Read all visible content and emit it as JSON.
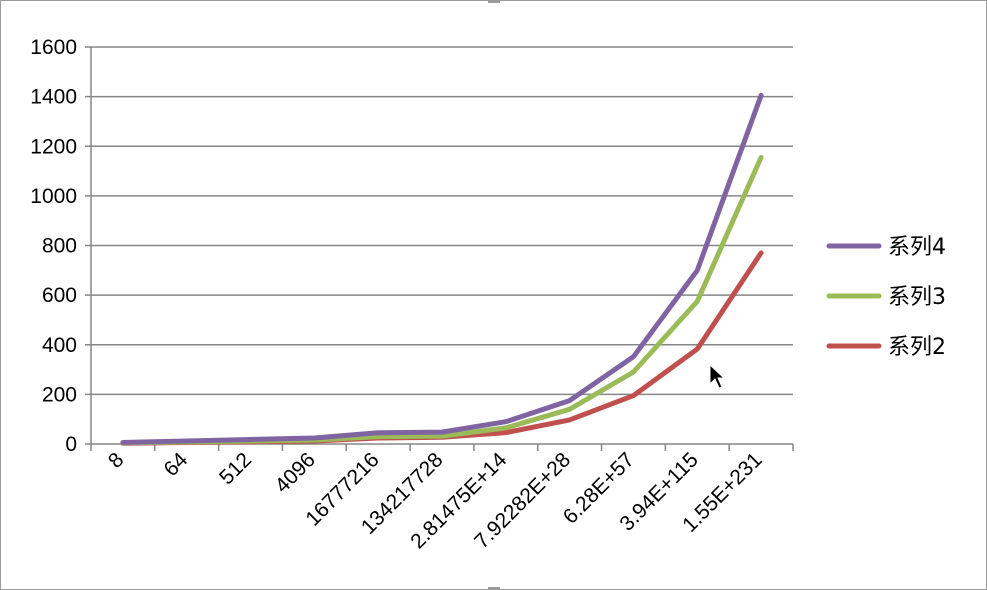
{
  "chart_data": {
    "type": "line",
    "categories": [
      "8",
      "64",
      "512",
      "4096",
      "16777216",
      "134217728",
      "2.81475E+14",
      "7.92282E+28",
      "6.28E+57",
      "3.94E+115",
      "1.55E+231"
    ],
    "series": [
      {
        "name": "系列4",
        "color": "#8064a2",
        "values": [
          6,
          12,
          18,
          24,
          45,
          48,
          90,
          175,
          352,
          700,
          1405
        ]
      },
      {
        "name": "系列3",
        "color": "#9bbb59",
        "values": [
          4,
          8,
          12,
          16,
          30,
          32,
          65,
          140,
          290,
          575,
          1155
        ]
      },
      {
        "name": "系列2",
        "color": "#c0504d",
        "values": [
          3,
          6,
          9,
          12,
          24,
          27,
          46,
          97,
          195,
          383,
          770
        ]
      }
    ],
    "yticks": [
      "0",
      "200",
      "400",
      "600",
      "800",
      "1000",
      "1200",
      "1400",
      "1600"
    ],
    "ylim": [
      0,
      1600
    ],
    "grid": true,
    "legend": "right",
    "title": "",
    "xlabel": "",
    "ylabel": ""
  }
}
